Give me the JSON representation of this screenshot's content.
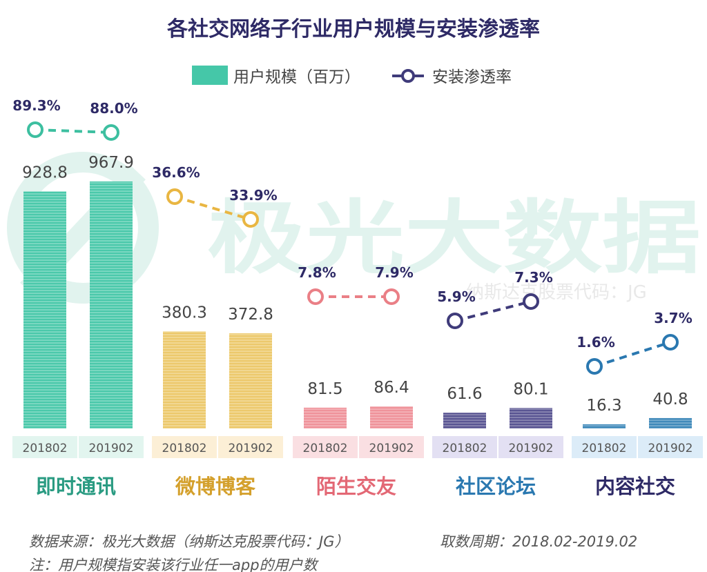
{
  "chart_data": {
    "type": "bar",
    "title": "各社交网络子行业用户规模与安装渗透率",
    "legend": {
      "bar_label": "用户规模（百万）",
      "line_label": "安装渗透率",
      "placement": "top-center"
    },
    "categories": [
      "即时通讯",
      "微博博客",
      "陌生交友",
      "社区论坛",
      "内容社交"
    ],
    "periods": [
      "201802",
      "201902"
    ],
    "series": [
      {
        "name": "用户规模（百万）",
        "type": "bar",
        "values": [
          [
            928.8,
            967.9
          ],
          [
            380.3,
            372.8
          ],
          [
            81.5,
            86.4
          ],
          [
            61.6,
            80.1
          ],
          [
            16.3,
            40.8
          ]
        ],
        "labels": [
          [
            "928.8",
            "967.9"
          ],
          [
            "380.3",
            "372.8"
          ],
          [
            "81.5",
            "86.4"
          ],
          [
            "61.6",
            "80.1"
          ],
          [
            "16.3",
            "40.8"
          ]
        ]
      },
      {
        "name": "安装渗透率",
        "type": "line",
        "values": [
          [
            89.3,
            88.0
          ],
          [
            36.6,
            33.9
          ],
          [
            7.8,
            7.9
          ],
          [
            5.9,
            7.3
          ],
          [
            1.6,
            3.7
          ]
        ],
        "labels": [
          [
            "89.3%",
            "88.0%"
          ],
          [
            "36.6%",
            "33.9%"
          ],
          [
            "7.8%",
            "7.9%"
          ],
          [
            "5.9%",
            "7.3%"
          ],
          [
            "1.6%",
            "3.7%"
          ]
        ]
      }
    ],
    "group_colors": [
      "#3dbfa0",
      "#e9b642",
      "#ea7f86",
      "#3f3b7a",
      "#2a78b0"
    ],
    "bar_colors": [
      "#45c7a8",
      "#ecc767",
      "#ef8f97",
      "#55508f",
      "#3a86b8"
    ],
    "period_bg_colors": [
      "#e2f5ef",
      "#fcefd6",
      "#fadfe2",
      "#e3e0f3",
      "#dcecf8"
    ],
    "category_label_colors": [
      "#2a9b82",
      "#d4a02c",
      "#e36875",
      "#2a78b0",
      "#2e2a66"
    ],
    "title_color": "#2e2a66",
    "grid": false
  },
  "watermark": {
    "text": "极光大数据",
    "subtext": "纳斯达克股票代码：JG"
  },
  "footer": {
    "source": "数据来源：极光大数据（纳斯达克股票代码：JG）",
    "period": "取数周期：2018.02-2019.02",
    "note": "注：用户规模指安装该行业任一app的用户数"
  }
}
